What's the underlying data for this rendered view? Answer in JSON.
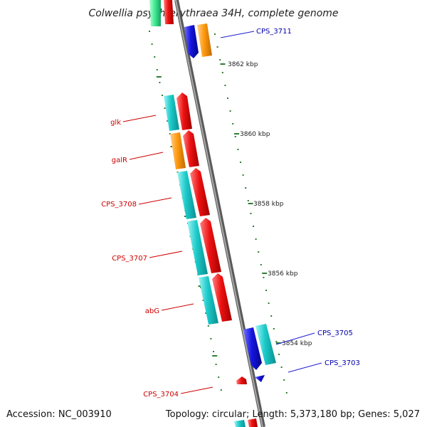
{
  "title": "Colwellia psychrerythraea 34H, complete genome",
  "footer": {
    "accession": "Accession: NC_003910",
    "summary": "Topology: circular; Length: 5,373,180 bp; Genes: 5,027"
  },
  "colors": {
    "backbone": "#8a8a8a",
    "tick": "#2e7d32",
    "cds_cyan": "#1cc8c8",
    "gene_red": "#ee1111",
    "cds_orange": "#ff9a10",
    "gene_blue": "#1515e0",
    "label_red": "#cc0000",
    "label_blue": "#0000aa"
  },
  "scale_labels": [
    "3862 kbp",
    "3860 kbp",
    "3858 kbp",
    "3856 kbp",
    "3854 kbp"
  ],
  "gene_labels": {
    "left": [
      "glk",
      "galR",
      "CPS_3708",
      "CPS_3707",
      "abG",
      "CPS_3704"
    ],
    "right": [
      "CPS_3711",
      "CPS_3705",
      "CPS_3703"
    ]
  }
}
